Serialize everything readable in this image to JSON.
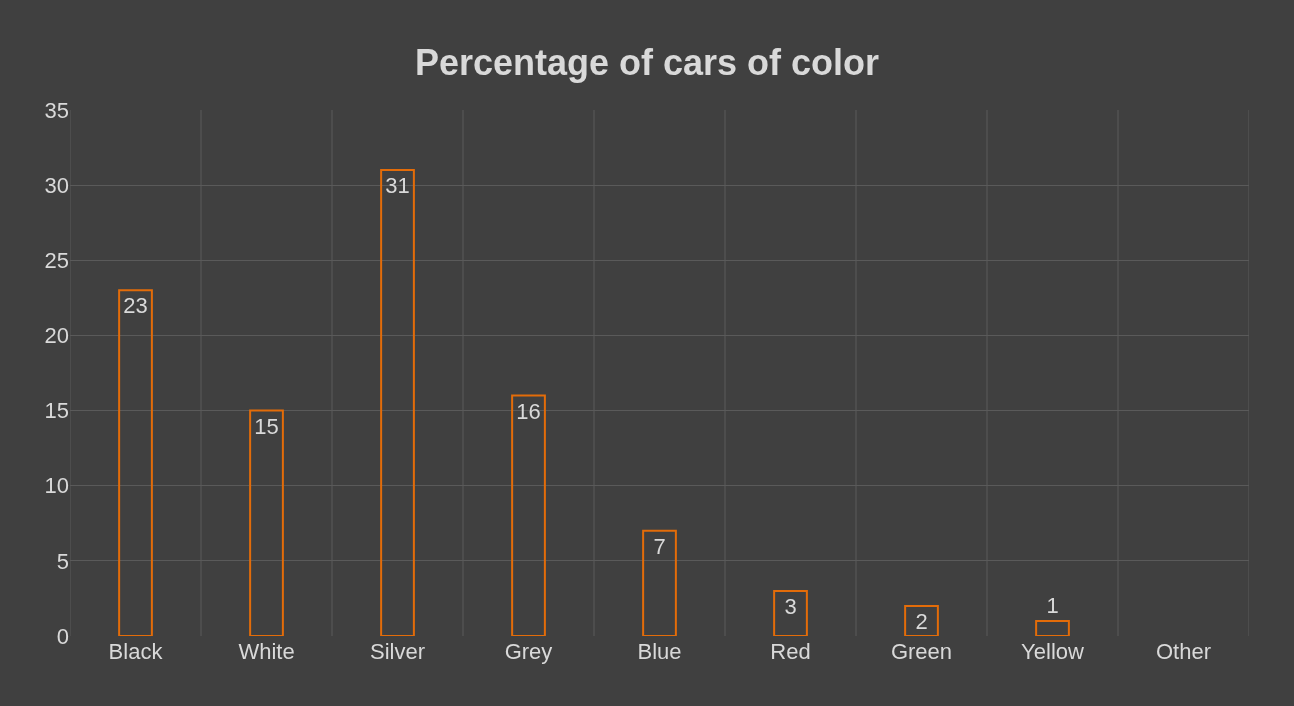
{
  "chart_data": {
    "type": "bar",
    "title": "Percentage of cars of color",
    "categories": [
      "Black",
      "White",
      "Silver",
      "Grey",
      "Blue",
      "Red",
      "Green",
      "Yellow",
      "Other"
    ],
    "values": [
      23,
      15,
      31,
      16,
      7,
      3,
      2,
      1,
      null
    ],
    "color": "#e36c09",
    "ylim": [
      0,
      35
    ],
    "yticks": [
      0,
      5,
      10,
      15,
      20,
      25,
      30,
      35
    ],
    "grid": true,
    "data_labels": true
  }
}
